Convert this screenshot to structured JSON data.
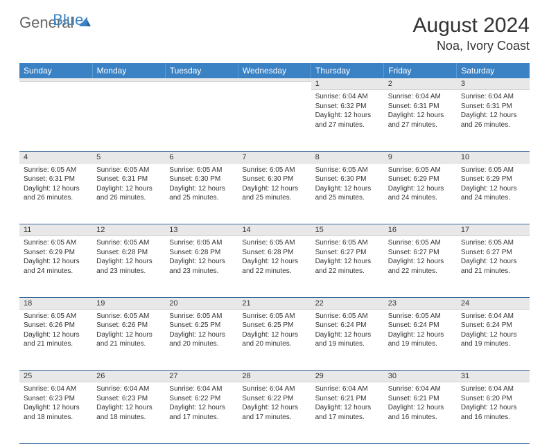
{
  "logo": {
    "text1": "General",
    "text2": "Blue"
  },
  "title": "August 2024",
  "location": "Noa, Ivory Coast",
  "colors": {
    "header_bg": "#3b82c4",
    "header_text": "#ffffff",
    "daynum_bg": "#e8e8e8",
    "week_border": "#3b6a9c",
    "logo_gray": "#666666",
    "logo_blue": "#3b82c4"
  },
  "weekdays": [
    "Sunday",
    "Monday",
    "Tuesday",
    "Wednesday",
    "Thursday",
    "Friday",
    "Saturday"
  ],
  "weeks": [
    [
      {
        "n": "",
        "sr": "",
        "ss": "",
        "dl": ""
      },
      {
        "n": "",
        "sr": "",
        "ss": "",
        "dl": ""
      },
      {
        "n": "",
        "sr": "",
        "ss": "",
        "dl": ""
      },
      {
        "n": "",
        "sr": "",
        "ss": "",
        "dl": ""
      },
      {
        "n": "1",
        "sr": "Sunrise: 6:04 AM",
        "ss": "Sunset: 6:32 PM",
        "dl": "Daylight: 12 hours and 27 minutes."
      },
      {
        "n": "2",
        "sr": "Sunrise: 6:04 AM",
        "ss": "Sunset: 6:31 PM",
        "dl": "Daylight: 12 hours and 27 minutes."
      },
      {
        "n": "3",
        "sr": "Sunrise: 6:04 AM",
        "ss": "Sunset: 6:31 PM",
        "dl": "Daylight: 12 hours and 26 minutes."
      }
    ],
    [
      {
        "n": "4",
        "sr": "Sunrise: 6:05 AM",
        "ss": "Sunset: 6:31 PM",
        "dl": "Daylight: 12 hours and 26 minutes."
      },
      {
        "n": "5",
        "sr": "Sunrise: 6:05 AM",
        "ss": "Sunset: 6:31 PM",
        "dl": "Daylight: 12 hours and 26 minutes."
      },
      {
        "n": "6",
        "sr": "Sunrise: 6:05 AM",
        "ss": "Sunset: 6:30 PM",
        "dl": "Daylight: 12 hours and 25 minutes."
      },
      {
        "n": "7",
        "sr": "Sunrise: 6:05 AM",
        "ss": "Sunset: 6:30 PM",
        "dl": "Daylight: 12 hours and 25 minutes."
      },
      {
        "n": "8",
        "sr": "Sunrise: 6:05 AM",
        "ss": "Sunset: 6:30 PM",
        "dl": "Daylight: 12 hours and 25 minutes."
      },
      {
        "n": "9",
        "sr": "Sunrise: 6:05 AM",
        "ss": "Sunset: 6:29 PM",
        "dl": "Daylight: 12 hours and 24 minutes."
      },
      {
        "n": "10",
        "sr": "Sunrise: 6:05 AM",
        "ss": "Sunset: 6:29 PM",
        "dl": "Daylight: 12 hours and 24 minutes."
      }
    ],
    [
      {
        "n": "11",
        "sr": "Sunrise: 6:05 AM",
        "ss": "Sunset: 6:29 PM",
        "dl": "Daylight: 12 hours and 24 minutes."
      },
      {
        "n": "12",
        "sr": "Sunrise: 6:05 AM",
        "ss": "Sunset: 6:28 PM",
        "dl": "Daylight: 12 hours and 23 minutes."
      },
      {
        "n": "13",
        "sr": "Sunrise: 6:05 AM",
        "ss": "Sunset: 6:28 PM",
        "dl": "Daylight: 12 hours and 23 minutes."
      },
      {
        "n": "14",
        "sr": "Sunrise: 6:05 AM",
        "ss": "Sunset: 6:28 PM",
        "dl": "Daylight: 12 hours and 22 minutes."
      },
      {
        "n": "15",
        "sr": "Sunrise: 6:05 AM",
        "ss": "Sunset: 6:27 PM",
        "dl": "Daylight: 12 hours and 22 minutes."
      },
      {
        "n": "16",
        "sr": "Sunrise: 6:05 AM",
        "ss": "Sunset: 6:27 PM",
        "dl": "Daylight: 12 hours and 22 minutes."
      },
      {
        "n": "17",
        "sr": "Sunrise: 6:05 AM",
        "ss": "Sunset: 6:27 PM",
        "dl": "Daylight: 12 hours and 21 minutes."
      }
    ],
    [
      {
        "n": "18",
        "sr": "Sunrise: 6:05 AM",
        "ss": "Sunset: 6:26 PM",
        "dl": "Daylight: 12 hours and 21 minutes."
      },
      {
        "n": "19",
        "sr": "Sunrise: 6:05 AM",
        "ss": "Sunset: 6:26 PM",
        "dl": "Daylight: 12 hours and 21 minutes."
      },
      {
        "n": "20",
        "sr": "Sunrise: 6:05 AM",
        "ss": "Sunset: 6:25 PM",
        "dl": "Daylight: 12 hours and 20 minutes."
      },
      {
        "n": "21",
        "sr": "Sunrise: 6:05 AM",
        "ss": "Sunset: 6:25 PM",
        "dl": "Daylight: 12 hours and 20 minutes."
      },
      {
        "n": "22",
        "sr": "Sunrise: 6:05 AM",
        "ss": "Sunset: 6:24 PM",
        "dl": "Daylight: 12 hours and 19 minutes."
      },
      {
        "n": "23",
        "sr": "Sunrise: 6:05 AM",
        "ss": "Sunset: 6:24 PM",
        "dl": "Daylight: 12 hours and 19 minutes."
      },
      {
        "n": "24",
        "sr": "Sunrise: 6:04 AM",
        "ss": "Sunset: 6:24 PM",
        "dl": "Daylight: 12 hours and 19 minutes."
      }
    ],
    [
      {
        "n": "25",
        "sr": "Sunrise: 6:04 AM",
        "ss": "Sunset: 6:23 PM",
        "dl": "Daylight: 12 hours and 18 minutes."
      },
      {
        "n": "26",
        "sr": "Sunrise: 6:04 AM",
        "ss": "Sunset: 6:23 PM",
        "dl": "Daylight: 12 hours and 18 minutes."
      },
      {
        "n": "27",
        "sr": "Sunrise: 6:04 AM",
        "ss": "Sunset: 6:22 PM",
        "dl": "Daylight: 12 hours and 17 minutes."
      },
      {
        "n": "28",
        "sr": "Sunrise: 6:04 AM",
        "ss": "Sunset: 6:22 PM",
        "dl": "Daylight: 12 hours and 17 minutes."
      },
      {
        "n": "29",
        "sr": "Sunrise: 6:04 AM",
        "ss": "Sunset: 6:21 PM",
        "dl": "Daylight: 12 hours and 17 minutes."
      },
      {
        "n": "30",
        "sr": "Sunrise: 6:04 AM",
        "ss": "Sunset: 6:21 PM",
        "dl": "Daylight: 12 hours and 16 minutes."
      },
      {
        "n": "31",
        "sr": "Sunrise: 6:04 AM",
        "ss": "Sunset: 6:20 PM",
        "dl": "Daylight: 12 hours and 16 minutes."
      }
    ]
  ]
}
